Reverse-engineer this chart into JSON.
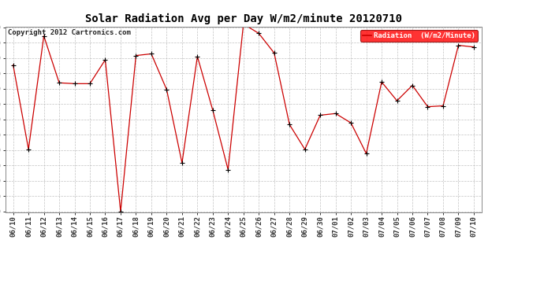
{
  "title": "Solar Radiation Avg per Day W/m2/minute 20120710",
  "copyright": "Copyright 2012 Cartronics.com",
  "legend_label": "Radiation  (W/m2/Minute)",
  "dates": [
    "06/10",
    "06/11",
    "06/12",
    "06/13",
    "06/14",
    "06/15",
    "06/16",
    "06/17",
    "06/18",
    "06/19",
    "06/20",
    "06/21",
    "06/22",
    "06/23",
    "06/24",
    "06/25",
    "06/26",
    "06/27",
    "06/28",
    "06/29",
    "06/30",
    "07/01",
    "07/02",
    "07/03",
    "07/04",
    "07/05",
    "07/06",
    "07/07",
    "07/08",
    "07/09",
    "07/10"
  ],
  "values": [
    473,
    374,
    507,
    452,
    451,
    451,
    479,
    301,
    484,
    486,
    444,
    358,
    483,
    420,
    350,
    521,
    510,
    487,
    403,
    374,
    414,
    416,
    405,
    369,
    453,
    431,
    449,
    424,
    425,
    496,
    494
  ],
  "line_color": "#cc0000",
  "marker_color": "#000000",
  "bg_color": "#ffffff",
  "plot_bg_color": "#ffffff",
  "grid_color": "#bbbbbb",
  "title_fontsize": 10,
  "copyright_fontsize": 6.5,
  "tick_fontsize": 6.5,
  "legend_fontsize": 6.5,
  "ylim_min": 301.0,
  "ylim_max": 517.0,
  "ytick_step": 18.0
}
